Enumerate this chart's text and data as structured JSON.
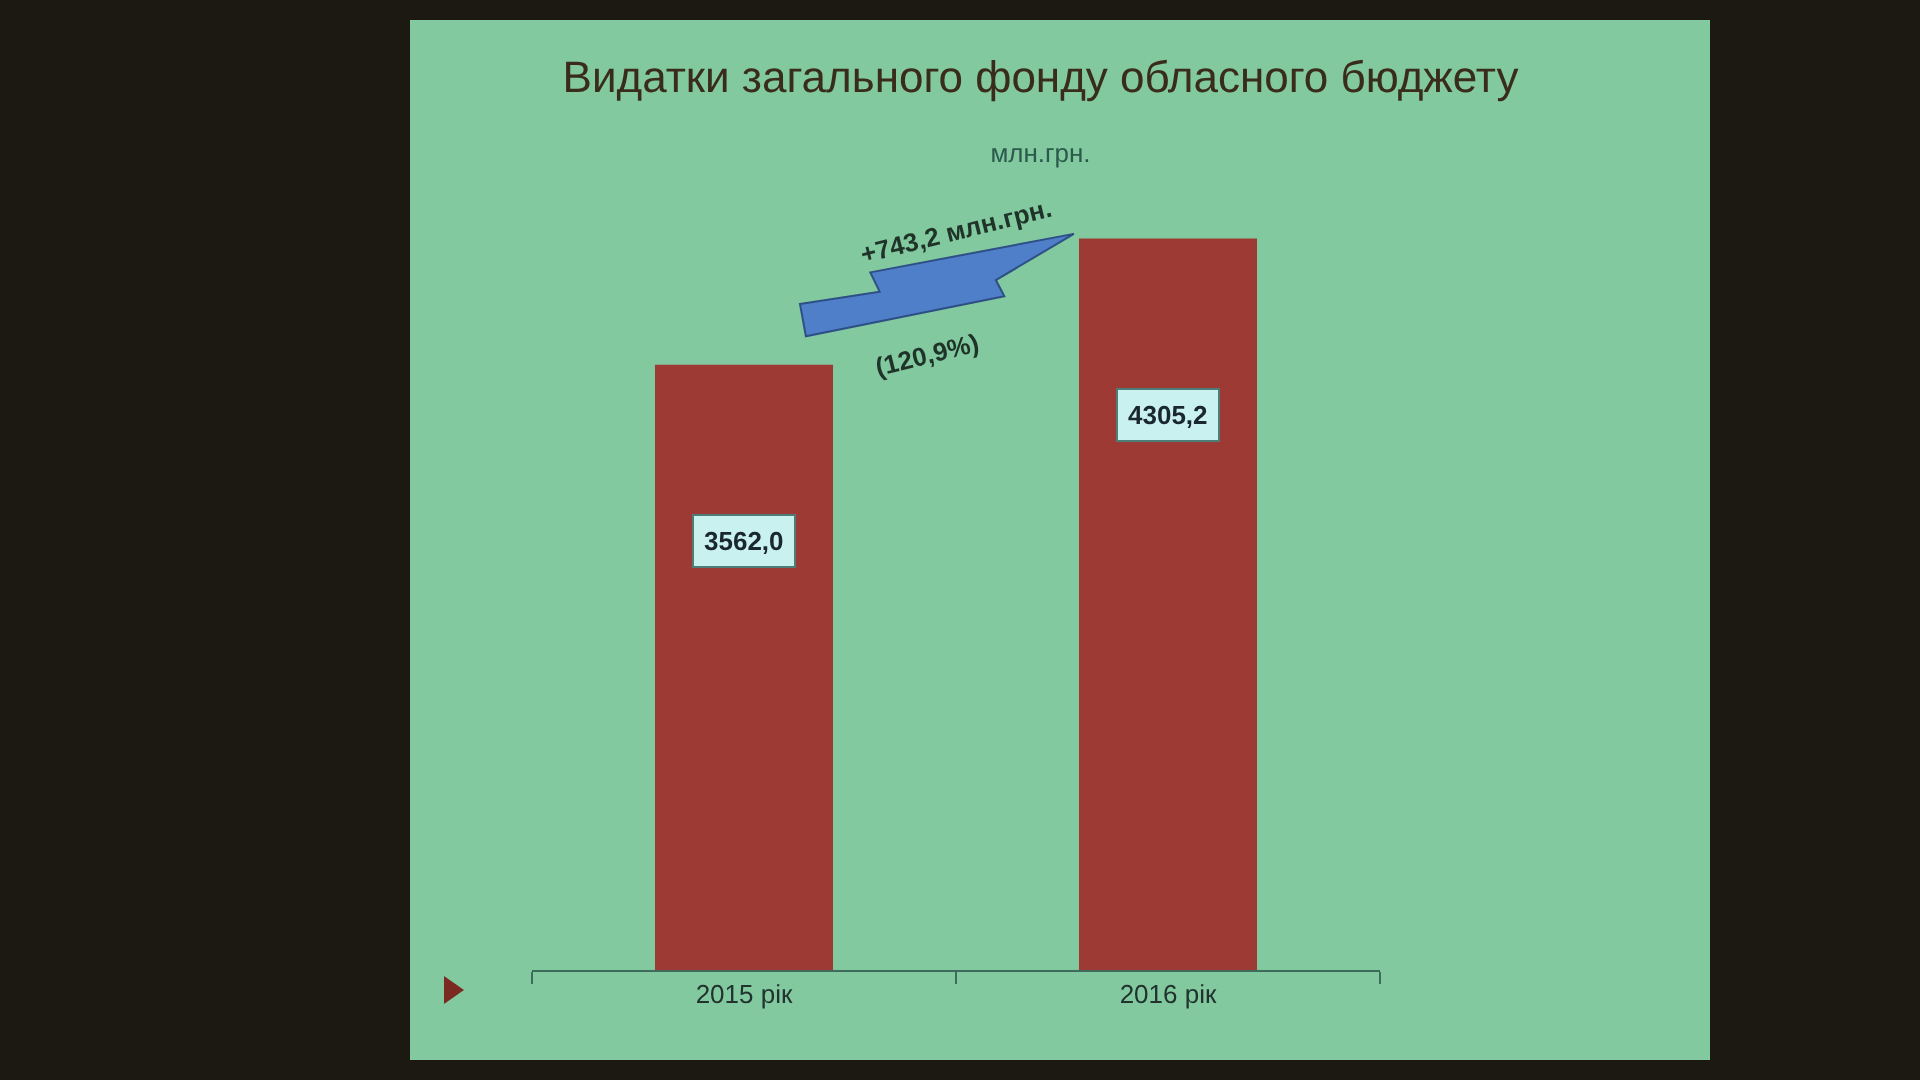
{
  "chart_data": {
    "type": "bar",
    "title": "Видатки загального фонду обласного бюджету",
    "subtitle": "млн.грн.",
    "categories": [
      "2015 рік",
      "2016 рік"
    ],
    "values": [
      3562.0,
      4305.2
    ],
    "value_labels": [
      "3562,0",
      "4305,2"
    ],
    "color": "#9e3a34",
    "annotations": [
      "+743,2 млн.грн.",
      "(120,9%)"
    ],
    "legend": false,
    "grid": false,
    "tick_labels": "x"
  }
}
